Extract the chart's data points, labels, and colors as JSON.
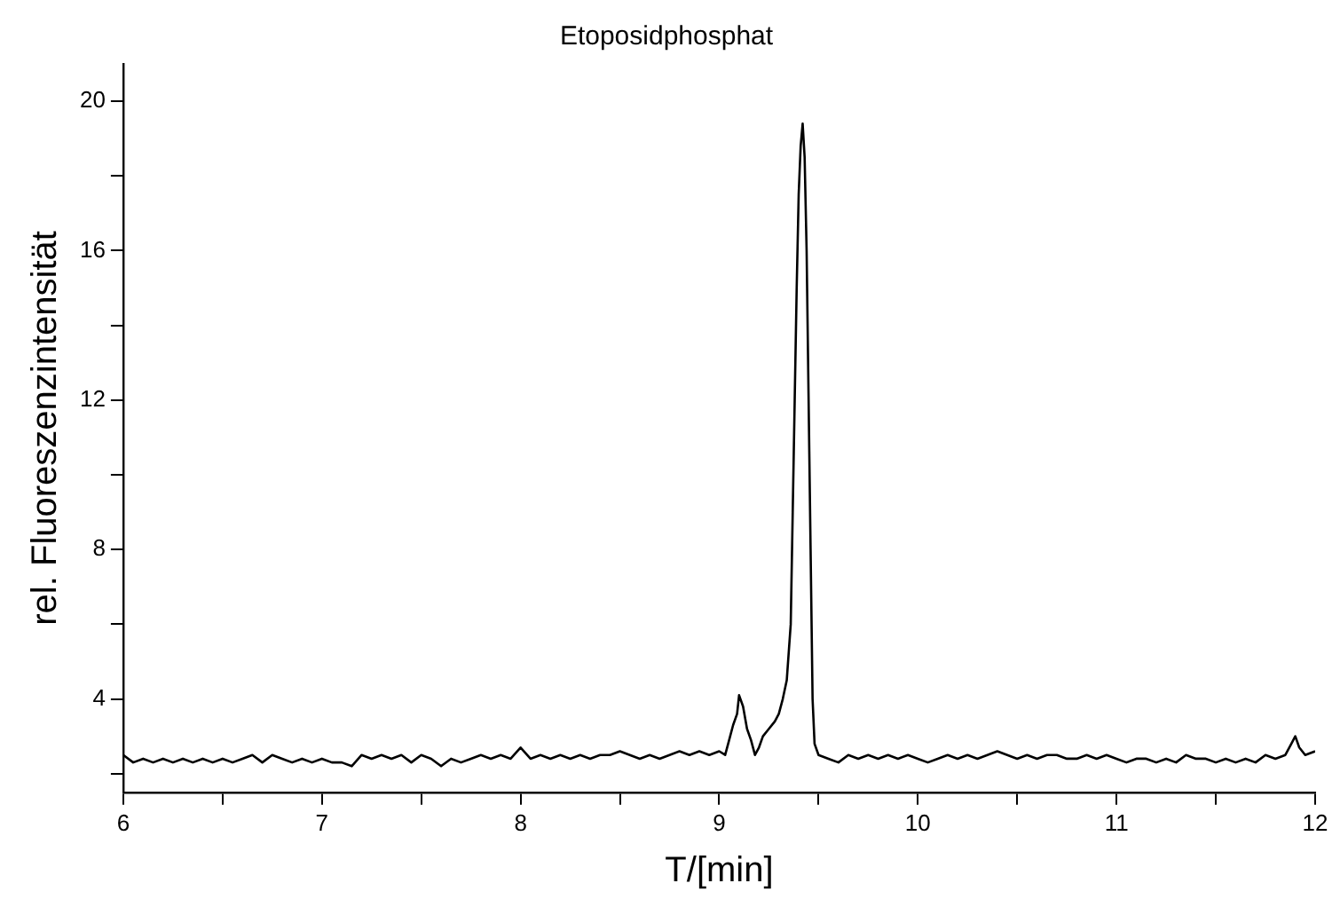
{
  "chart_data": {
    "type": "line",
    "title": "Etoposidphosphat",
    "xlabel": "T/[min]",
    "ylabel": "rel. Fluoreszenzintensität",
    "xlim": [
      6,
      12
    ],
    "xticks": [
      6,
      {
        "value": 6.5,
        "label": null
      },
      7,
      {
        "value": 7.5,
        "label": null
      },
      8,
      {
        "value": 8.5,
        "label": null
      },
      9,
      {
        "value": 9.5,
        "label": null
      },
      10,
      {
        "value": 10.5,
        "label": null
      },
      11,
      {
        "value": 11.5,
        "label": null
      },
      12
    ],
    "ylim": [
      1.5,
      21
    ],
    "yticks": [
      {
        "value": 2,
        "label": null
      },
      4,
      {
        "value": 6,
        "label": null
      },
      8,
      {
        "value": 10,
        "label": null
      },
      12,
      {
        "value": 14,
        "label": null
      },
      16,
      {
        "value": 18,
        "label": null
      },
      20
    ],
    "grid": false,
    "legend": false,
    "marker": "none",
    "line_style": "solid",
    "series": [
      {
        "color": "#000000",
        "x": [
          6,
          6.05,
          6.1,
          6.15,
          6.2,
          6.25,
          6.3,
          6.35,
          6.4,
          6.45,
          6.5,
          6.55,
          6.6,
          6.65,
          6.7,
          6.75,
          6.8,
          6.85,
          6.9,
          6.95,
          7,
          7.05,
          7.1,
          7.15,
          7.2,
          7.25,
          7.3,
          7.35,
          7.4,
          7.45,
          7.5,
          7.55,
          7.6,
          7.65,
          7.7,
          7.75,
          7.8,
          7.85,
          7.9,
          7.95,
          8,
          8.05,
          8.1,
          8.15,
          8.2,
          8.25,
          8.3,
          8.35,
          8.4,
          8.45,
          8.5,
          8.55,
          8.6,
          8.65,
          8.7,
          8.75,
          8.8,
          8.85,
          8.9,
          8.95,
          9,
          9.03,
          9.05,
          9.07,
          9.09,
          9.1,
          9.12,
          9.14,
          9.16,
          9.18,
          9.2,
          9.22,
          9.25,
          9.28,
          9.3,
          9.32,
          9.34,
          9.36,
          9.37,
          9.38,
          9.39,
          9.4,
          9.41,
          9.42,
          9.43,
          9.44,
          9.45,
          9.46,
          9.47,
          9.48,
          9.5,
          9.55,
          9.6,
          9.65,
          9.7,
          9.75,
          9.8,
          9.85,
          9.9,
          9.95,
          10,
          10.05,
          10.1,
          10.15,
          10.2,
          10.25,
          10.3,
          10.35,
          10.4,
          10.45,
          10.5,
          10.55,
          10.6,
          10.65,
          10.7,
          10.75,
          10.8,
          10.85,
          10.9,
          10.95,
          11,
          11.05,
          11.1,
          11.15,
          11.2,
          11.25,
          11.3,
          11.35,
          11.4,
          11.45,
          11.5,
          11.55,
          11.6,
          11.65,
          11.7,
          11.75,
          11.8,
          11.85,
          11.88,
          11.9,
          11.92,
          11.95,
          12
        ],
        "values": [
          2.5,
          2.3,
          2.4,
          2.3,
          2.4,
          2.3,
          2.4,
          2.3,
          2.4,
          2.3,
          2.4,
          2.3,
          2.4,
          2.5,
          2.3,
          2.5,
          2.4,
          2.3,
          2.4,
          2.3,
          2.4,
          2.3,
          2.3,
          2.2,
          2.5,
          2.4,
          2.5,
          2.4,
          2.5,
          2.3,
          2.5,
          2.4,
          2.2,
          2.4,
          2.3,
          2.4,
          2.5,
          2.4,
          2.5,
          2.4,
          2.7,
          2.4,
          2.5,
          2.4,
          2.5,
          2.4,
          2.5,
          2.4,
          2.5,
          2.5,
          2.6,
          2.5,
          2.4,
          2.5,
          2.4,
          2.5,
          2.6,
          2.5,
          2.6,
          2.5,
          2.6,
          2.5,
          2.9,
          3.3,
          3.6,
          4.1,
          3.8,
          3.2,
          2.9,
          2.5,
          2.7,
          3.0,
          3.2,
          3.4,
          3.6,
          4.0,
          4.5,
          6,
          9,
          12,
          15,
          17.5,
          18.8,
          19.4,
          18.5,
          16,
          12,
          8,
          4,
          2.8,
          2.5,
          2.4,
          2.3,
          2.5,
          2.4,
          2.5,
          2.4,
          2.5,
          2.4,
          2.5,
          2.4,
          2.3,
          2.4,
          2.5,
          2.4,
          2.5,
          2.4,
          2.5,
          2.6,
          2.5,
          2.4,
          2.5,
          2.4,
          2.5,
          2.5,
          2.4,
          2.4,
          2.5,
          2.4,
          2.5,
          2.4,
          2.3,
          2.4,
          2.4,
          2.3,
          2.4,
          2.3,
          2.5,
          2.4,
          2.4,
          2.3,
          2.4,
          2.3,
          2.4,
          2.3,
          2.5,
          2.4,
          2.5,
          2.8,
          3.0,
          2.7,
          2.5,
          2.6
        ]
      }
    ]
  }
}
